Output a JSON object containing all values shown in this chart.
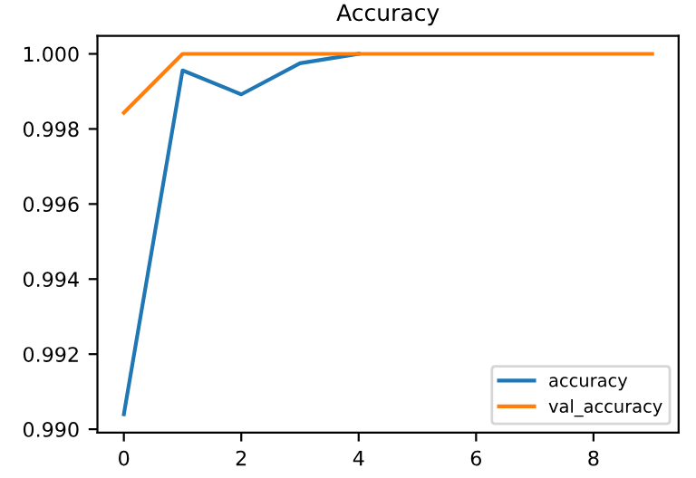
{
  "chart_data": {
    "type": "line",
    "title": "Accuracy",
    "x": [
      0,
      1,
      2,
      3,
      4,
      5,
      6,
      7,
      8,
      9
    ],
    "series": [
      {
        "name": "accuracy",
        "color": "#1f77b4",
        "values": [
          0.9904,
          0.99956,
          0.99892,
          0.99975,
          1.0,
          null,
          null,
          null,
          null,
          null
        ]
      },
      {
        "name": "val_accuracy",
        "color": "#ff7f0e",
        "values": [
          0.99843,
          1.0,
          1.0,
          1.0,
          1.0,
          1.0,
          1.0,
          1.0,
          1.0,
          1.0
        ]
      }
    ],
    "xlim": [
      -0.45,
      9.45
    ],
    "ylim": [
      0.98991,
      1.00048
    ],
    "xticks": [
      0,
      2,
      4,
      6,
      8
    ],
    "yticks": [
      {
        "value": 0.99,
        "label": "0.990"
      },
      {
        "value": 0.992,
        "label": "0.992"
      },
      {
        "value": 0.994,
        "label": "0.994"
      },
      {
        "value": 0.996,
        "label": "0.996"
      },
      {
        "value": 0.998,
        "label": "0.998"
      },
      {
        "value": 1.0,
        "label": "1.000"
      }
    ],
    "legend": "lower right",
    "grid": false
  }
}
